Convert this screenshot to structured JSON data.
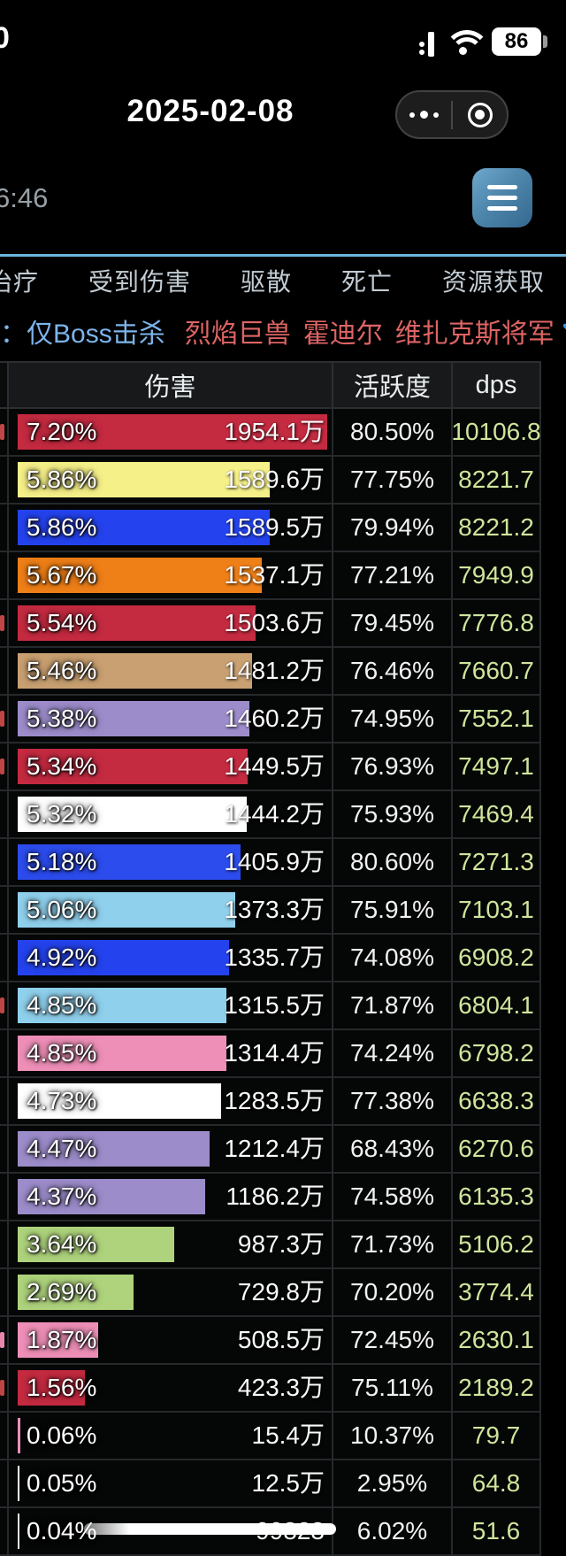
{
  "status_bar": {
    "clock_fragment": "0",
    "battery_level": "86"
  },
  "nav_bar": {
    "title": "2025-02-08"
  },
  "toolbar": {
    "time_fragment": "6:46"
  },
  "tabs": [
    "治疗",
    "受到伤害",
    "驱散",
    "死亡",
    "资源获取"
  ],
  "filter": {
    "prefix": "：",
    "kill_filter": "仅Boss击杀",
    "bosses": [
      "烈焰巨兽",
      "霍迪尔",
      "维扎克斯将军"
    ]
  },
  "table": {
    "headers": {
      "damage": "伤害",
      "activity": "活跃度",
      "dps": "dps"
    },
    "max_pct": 7.2,
    "rows": [
      {
        "pct": 7.2,
        "pct_label": "7.20%",
        "damage": "1954.1万",
        "activity": "80.50%",
        "dps": "10106.8",
        "color": "#c42a40",
        "fragment": "#c04545"
      },
      {
        "pct": 5.86,
        "pct_label": "5.86%",
        "damage": "1589.6万",
        "activity": "77.75%",
        "dps": "8221.7",
        "color": "#f6f088",
        "fragment": null
      },
      {
        "pct": 5.86,
        "pct_label": "5.86%",
        "damage": "1589.5万",
        "activity": "79.94%",
        "dps": "8221.2",
        "color": "#2443ee",
        "fragment": null
      },
      {
        "pct": 5.67,
        "pct_label": "5.67%",
        "damage": "1537.1万",
        "activity": "77.21%",
        "dps": "7949.9",
        "color": "#ef7f17",
        "fragment": null
      },
      {
        "pct": 5.54,
        "pct_label": "5.54%",
        "damage": "1503.6万",
        "activity": "79.45%",
        "dps": "7776.8",
        "color": "#c42a40",
        "fragment": "#c04545"
      },
      {
        "pct": 5.46,
        "pct_label": "5.46%",
        "damage": "1481.2万",
        "activity": "76.46%",
        "dps": "7660.7",
        "color": "#c8a071",
        "fragment": null
      },
      {
        "pct": 5.38,
        "pct_label": "5.38%",
        "damage": "1460.2万",
        "activity": "74.95%",
        "dps": "7552.1",
        "color": "#9c8cca",
        "fragment": "#c04545"
      },
      {
        "pct": 5.34,
        "pct_label": "5.34%",
        "damage": "1449.5万",
        "activity": "76.93%",
        "dps": "7497.1",
        "color": "#c42a40",
        "fragment": "#c04545"
      },
      {
        "pct": 5.32,
        "pct_label": "5.32%",
        "damage": "1444.2万",
        "activity": "75.93%",
        "dps": "7469.4",
        "color": "#ffffff",
        "fragment": null
      },
      {
        "pct": 5.18,
        "pct_label": "5.18%",
        "damage": "1405.9万",
        "activity": "80.60%",
        "dps": "7271.3",
        "color": "#2c4cee",
        "fragment": null
      },
      {
        "pct": 5.06,
        "pct_label": "5.06%",
        "damage": "1373.3万",
        "activity": "75.91%",
        "dps": "7103.1",
        "color": "#8fd0ec",
        "fragment": null
      },
      {
        "pct": 4.92,
        "pct_label": "4.92%",
        "damage": "1335.7万",
        "activity": "74.08%",
        "dps": "6908.2",
        "color": "#2443ee",
        "fragment": null
      },
      {
        "pct": 4.85,
        "pct_label": "4.85%",
        "damage": "1315.5万",
        "activity": "71.87%",
        "dps": "6804.1",
        "color": "#8fd0ec",
        "fragment": "#c04545"
      },
      {
        "pct": 4.85,
        "pct_label": "4.85%",
        "damage": "1314.4万",
        "activity": "74.24%",
        "dps": "6798.2",
        "color": "#ee8fb8",
        "fragment": null
      },
      {
        "pct": 4.73,
        "pct_label": "4.73%",
        "damage": "1283.5万",
        "activity": "77.38%",
        "dps": "6638.3",
        "color": "#ffffff",
        "fragment": null
      },
      {
        "pct": 4.47,
        "pct_label": "4.47%",
        "damage": "1212.4万",
        "activity": "68.43%",
        "dps": "6270.6",
        "color": "#9c8cca",
        "fragment": null
      },
      {
        "pct": 4.37,
        "pct_label": "4.37%",
        "damage": "1186.2万",
        "activity": "74.58%",
        "dps": "6135.3",
        "color": "#9c8cca",
        "fragment": null
      },
      {
        "pct": 3.64,
        "pct_label": "3.64%",
        "damage": "987.3万",
        "activity": "71.73%",
        "dps": "5106.2",
        "color": "#aed37c",
        "fragment": null
      },
      {
        "pct": 2.69,
        "pct_label": "2.69%",
        "damage": "729.8万",
        "activity": "70.20%",
        "dps": "3774.4",
        "color": "#aed37c",
        "fragment": null
      },
      {
        "pct": 1.87,
        "pct_label": "1.87%",
        "damage": "508.5万",
        "activity": "72.45%",
        "dps": "2630.1",
        "color": "#ee8fb8",
        "fragment": "#e886ae"
      },
      {
        "pct": 1.56,
        "pct_label": "1.56%",
        "damage": "423.3万",
        "activity": "75.11%",
        "dps": "2189.2",
        "color": "#c42a40",
        "fragment": "#c04545"
      },
      {
        "pct": 0.06,
        "pct_label": "0.06%",
        "damage": "15.4万",
        "activity": "10.37%",
        "dps": "79.7",
        "color": "#ee8fb8",
        "fragment": null
      },
      {
        "pct": 0.05,
        "pct_label": "0.05%",
        "damage": "12.5万",
        "activity": "2.95%",
        "dps": "64.8",
        "color": "#ffffff",
        "fragment": null
      },
      {
        "pct": 0.04,
        "pct_label": "0.04%",
        "damage": "99823",
        "activity": "6.02%",
        "dps": "51.6",
        "color": "#e8e8e8",
        "fragment": null
      }
    ]
  },
  "colors": {
    "accent_line": "#6db4dc",
    "dps_text": "#cfe59c",
    "filter_blue": "#7cb4ea",
    "filter_red": "#dd6464",
    "tab_text": "#c2ccd4"
  }
}
